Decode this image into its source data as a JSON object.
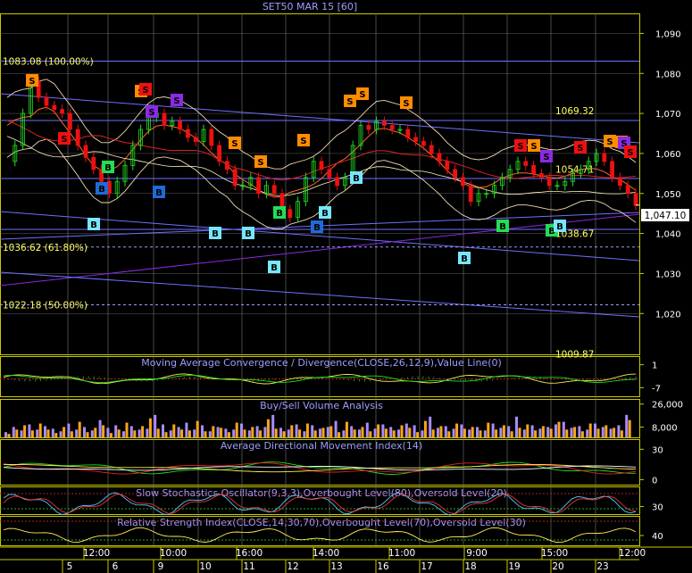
{
  "chart_data": {
    "type": "line",
    "title": "SET50 MAR 15   [60]",
    "colors": {
      "background": "#000000",
      "frame": "#c8c800",
      "grid": "#7a7a7a",
      "price_up": "#22dd22",
      "price_down": "#ee1111",
      "channel": "#6f6fff",
      "fib_dashed": "#9b9bff",
      "trend_purple": "#8a2be2",
      "signal_buy": "#78e6ff",
      "signal_sell": "#ff8c00",
      "volume_buy": "#ffa51a",
      "volume_sell": "#a78cff",
      "axis_text": "#ffffff",
      "label_text": "#ffff60",
      "subtitle_text": "#9d9dff"
    },
    "price_axis": {
      "ylim": [
        1009.8,
        1095
      ],
      "ticks": [
        1020,
        1030,
        1040,
        1050,
        1060,
        1070,
        1080,
        1090
      ],
      "tick_labels": [
        "1,020",
        "1,030",
        "1,040",
        "1,050",
        "1,060",
        "1,070",
        "1,080",
        "1,090"
      ]
    },
    "last_price": {
      "value": 1047.1,
      "label": "1,047.10"
    },
    "levels": [
      {
        "label": "1083.08 (100.00%)",
        "value": 1083.08,
        "style": "solid"
      },
      {
        "label": "1036.62 (61.80%)",
        "value": 1036.62,
        "style": "dashed"
      },
      {
        "label": "1022.18 (50.00%)",
        "value": 1022.18,
        "style": "dashed"
      }
    ],
    "price_labels": [
      {
        "label": "1069.32",
        "value": 1069.32
      },
      {
        "label": "1054.71",
        "value": 1054.71
      },
      {
        "label": "1038.67",
        "value": 1038.67
      },
      {
        "label": "1009.87",
        "value": 1009.87
      }
    ],
    "price_series": [
      1058,
      1062,
      1070,
      1078,
      1074,
      1072,
      1071,
      1070,
      1066,
      1062,
      1059,
      1056,
      1053,
      1050,
      1053,
      1057,
      1062,
      1066,
      1069,
      1070,
      1067,
      1068,
      1066,
      1064,
      1063,
      1066,
      1062,
      1058,
      1056,
      1052,
      1052,
      1054,
      1050,
      1052,
      1050,
      1046,
      1044,
      1048,
      1054,
      1058,
      1056,
      1054,
      1052,
      1054,
      1062,
      1067,
      1066,
      1068,
      1067,
      1066,
      1066,
      1064,
      1063,
      1062,
      1060,
      1058,
      1056,
      1054,
      1052,
      1048,
      1050,
      1050,
      1052,
      1054,
      1056,
      1058,
      1057,
      1055,
      1054,
      1052,
      1052,
      1053,
      1055,
      1056,
      1058,
      1060,
      1058,
      1054,
      1052,
      1050,
      1047
    ],
    "signals": [
      {
        "label": "S",
        "kind": "sell"
      },
      {
        "label": "S",
        "kind": "sell-red"
      },
      {
        "label": "S",
        "kind": "sell"
      },
      {
        "label": "S",
        "kind": "sell-red"
      },
      {
        "label": "S",
        "kind": "purple"
      },
      {
        "label": "S",
        "kind": "purple"
      },
      {
        "label": "S",
        "kind": "sell"
      },
      {
        "label": "S",
        "kind": "sell"
      },
      {
        "label": "S",
        "kind": "sell"
      },
      {
        "label": "S",
        "kind": "sell"
      },
      {
        "label": "S",
        "kind": "sell"
      },
      {
        "label": "S",
        "kind": "sell"
      },
      {
        "label": "S",
        "kind": "sell-red"
      },
      {
        "label": "S",
        "kind": "sell"
      },
      {
        "label": "S",
        "kind": "purple"
      },
      {
        "label": "S",
        "kind": "sell-red"
      },
      {
        "label": "S",
        "kind": "sell"
      },
      {
        "label": "S",
        "kind": "sell"
      },
      {
        "label": "S",
        "kind": "purple"
      },
      {
        "label": "S",
        "kind": "sell-red"
      },
      {
        "label": "B",
        "kind": "buy-green"
      },
      {
        "label": "B",
        "kind": "buy-blue"
      },
      {
        "label": "B",
        "kind": "buy-cyan"
      },
      {
        "label": "B",
        "kind": "buy-blue"
      },
      {
        "label": "B",
        "kind": "buy-cyan"
      },
      {
        "label": "B",
        "kind": "buy-cyan"
      },
      {
        "label": "B",
        "kind": "buy-cyan"
      },
      {
        "label": "B",
        "kind": "buy-green"
      },
      {
        "label": "B",
        "kind": "buy-blue"
      },
      {
        "label": "B",
        "kind": "buy-cyan"
      },
      {
        "label": "B",
        "kind": "buy-cyan"
      },
      {
        "label": "B",
        "kind": "buy-cyan"
      },
      {
        "label": "B",
        "kind": "buy-green"
      },
      {
        "label": "B",
        "kind": "buy-green"
      },
      {
        "label": "B",
        "kind": "buy-cyan"
      }
    ],
    "panels": [
      {
        "name": "macd",
        "title": "Moving Average Convergence / Divergence(CLOSE,26,12,9),Value Line(0)",
        "ylim": [
          -10,
          4
        ],
        "tick_labels": [
          "1",
          "-7"
        ],
        "ticks": [
          1,
          -7
        ]
      },
      {
        "name": "volume",
        "title": "Buy/Sell Volume Analysis",
        "ylim": [
          0,
          30000
        ],
        "tick_labels": [
          "26,000",
          "8,000"
        ],
        "ticks": [
          26000,
          8000
        ],
        "buy": [
          4000,
          9000,
          14000,
          8000,
          16000,
          9000,
          5000,
          12000,
          7000,
          18000,
          6000,
          11000,
          14000,
          5000,
          9000,
          17000,
          8000,
          13000,
          22000,
          10000,
          6000,
          15000,
          9000,
          8000,
          19000,
          7000,
          13000,
          11000,
          6000,
          17000,
          9000,
          12000,
          8000,
          21000,
          10000,
          7000,
          14000,
          9000,
          16000,
          8000,
          11000,
          13000,
          6000,
          18000,
          9000,
          12000,
          7000,
          15000,
          10000,
          8000,
          14000,
          11000,
          6000,
          19000,
          9000,
          13000,
          7000,
          16000,
          10000,
          12000,
          8000,
          17000,
          9000,
          14000,
          7000,
          11000,
          15000,
          8000,
          13000,
          10000,
          18000,
          9000,
          12000,
          7000,
          16000,
          10000,
          14000,
          11000,
          8000,
          20000
        ],
        "sell": [
          6000,
          12000,
          8000,
          15000,
          9000,
          13000,
          10000,
          7000,
          16000,
          9000,
          12000,
          8000,
          20000,
          11000,
          14000,
          7000,
          13000,
          9000,
          10000,
          26000,
          15000,
          8000,
          12000,
          17000,
          9000,
          14000,
          7000,
          12000,
          10000,
          9000,
          16000,
          8000,
          13000,
          12000,
          26000,
          11000,
          9000,
          15000,
          7000,
          14000,
          10000,
          12000,
          19000,
          8000,
          13000,
          9000,
          17000,
          10000,
          15000,
          12000,
          9000,
          16000,
          14000,
          8000,
          24000,
          11000,
          13000,
          10000,
          15000,
          9000,
          12000,
          8000,
          16000,
          11000,
          13000,
          24000,
          9000,
          14000,
          10000,
          12000,
          15000,
          18000,
          11000,
          13000,
          9000,
          16000,
          12000,
          10000,
          14000,
          26000
        ]
      },
      {
        "name": "adx",
        "title": "Average Directional Movement Index(14)",
        "ylim": [
          -5,
          40
        ],
        "tick_labels": [
          "30",
          "0"
        ],
        "ticks": [
          30,
          0
        ]
      },
      {
        "name": "stochastic",
        "title": "Slow Stochastics Oscillator(9,3,3),Overbought Level(80),Oversold Level(20)",
        "ylim": [
          0,
          110
        ],
        "tick_labels": [
          "30"
        ],
        "ticks": [
          30
        ]
      },
      {
        "name": "rsi",
        "title": "Relative Strength Index(CLOSE,14,30,70),Overbought Level(70),Oversold Level(30)",
        "ylim": [
          20,
          80
        ],
        "tick_labels": [
          "40"
        ],
        "ticks": [
          40
        ]
      }
    ],
    "time_labels": [
      "12:00",
      "10:00",
      "16:00",
      "14:00",
      "11:00",
      "9:00",
      "15:00",
      "12:00"
    ],
    "date_labels": [
      "5",
      "6",
      "9",
      "10",
      "11",
      "12",
      "13",
      "16",
      "17",
      "18",
      "19",
      "20",
      "23"
    ]
  }
}
